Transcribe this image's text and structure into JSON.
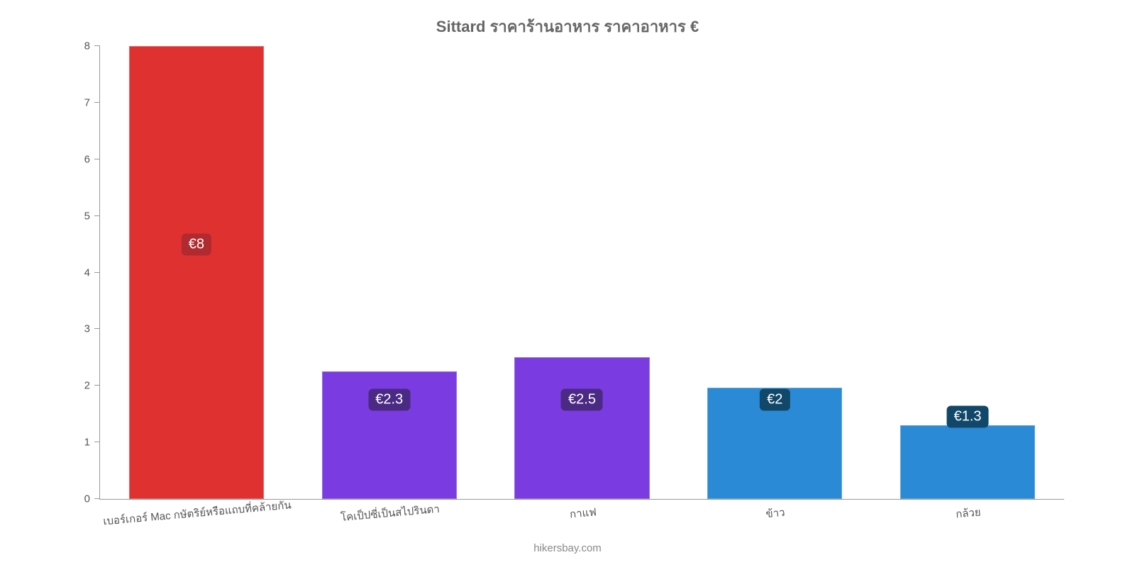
{
  "chart": {
    "type": "bar",
    "title": "Sittard ราคาร้านอาหาร ราคาอาหาร €",
    "title_fontsize": 22,
    "title_color": "#666666",
    "background_color": "#ffffff",
    "axis_color": "#999999",
    "tick_label_color": "#555555",
    "tick_label_fontsize": 15,
    "x_label_fontsize": 15,
    "x_label_rotation_deg": -5,
    "ylim": [
      0,
      8
    ],
    "ytick_step": 1,
    "yticks": [
      0,
      1,
      2,
      3,
      4,
      5,
      6,
      7,
      8
    ],
    "bar_width": 0.7,
    "value_label_fontsize": 20,
    "value_badge_text_color": "#ffffff",
    "value_badges": [
      {
        "text": "€8",
        "bg": "#b02a2f",
        "y": 4.5
      },
      {
        "text": "€2.3",
        "bg": "#4b2a84",
        "y": 1.75
      },
      {
        "text": "€2.5",
        "bg": "#4b2a84",
        "y": 1.75
      },
      {
        "text": "€2",
        "bg": "#114869",
        "y": 1.75
      },
      {
        "text": "€1.3",
        "bg": "#114869",
        "y": 1.45
      }
    ],
    "categories": [
      "เบอร์เกอร์ Mac กษัตริย์หรือแถบที่คล้ายกัน",
      "โคเป็ปซี่เป็นสไปรินดา",
      "กาแฟ",
      "ข้าว",
      "กล้วย"
    ],
    "values": [
      8,
      2.25,
      2.5,
      1.97,
      1.3
    ],
    "bar_colors": [
      "#e03131",
      "#7a3ce0",
      "#7a3ce0",
      "#2a8ad6",
      "#2a8ad6"
    ],
    "attribution": "hikersbay.com",
    "attribution_color": "#888888",
    "attribution_fontsize": 15
  }
}
